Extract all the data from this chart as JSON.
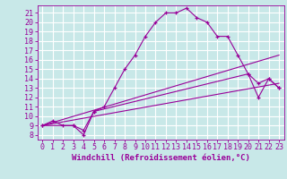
{
  "xlabel": "Windchill (Refroidissement éolien,°C)",
  "bg_color": "#c8e8e8",
  "line_color": "#990099",
  "grid_color": "#ffffff",
  "xlim": [
    -0.5,
    23.5
  ],
  "ylim": [
    7.5,
    21.8
  ],
  "xticks": [
    0,
    1,
    2,
    3,
    4,
    5,
    6,
    7,
    8,
    9,
    10,
    11,
    12,
    13,
    14,
    15,
    16,
    17,
    18,
    19,
    20,
    21,
    22,
    23
  ],
  "yticks": [
    8,
    9,
    10,
    11,
    12,
    13,
    14,
    15,
    16,
    17,
    18,
    19,
    20,
    21
  ],
  "line1_x": [
    0,
    1,
    2,
    3,
    4,
    5,
    6,
    7,
    8,
    9,
    10,
    11,
    12,
    13,
    14,
    15,
    16,
    17,
    18,
    19,
    20,
    21,
    22,
    23
  ],
  "line1_y": [
    9.0,
    9.5,
    9.0,
    9.0,
    8.5,
    10.5,
    11.0,
    13.0,
    15.0,
    16.5,
    18.5,
    20.0,
    21.0,
    21.0,
    21.5,
    20.5,
    20.0,
    18.5,
    18.5,
    16.5,
    14.5,
    13.5,
    14.0,
    13.0
  ],
  "line2_x": [
    0,
    23
  ],
  "line2_y": [
    9.0,
    16.5
  ],
  "line3_x": [
    0,
    23
  ],
  "line3_y": [
    9.0,
    13.5
  ],
  "line4_x": [
    0,
    3,
    4,
    5,
    20,
    21,
    22,
    23
  ],
  "line4_y": [
    9.0,
    9.0,
    8.0,
    10.5,
    14.5,
    12.0,
    14.0,
    13.0
  ],
  "tick_fontsize": 6,
  "label_fontsize": 6.5
}
